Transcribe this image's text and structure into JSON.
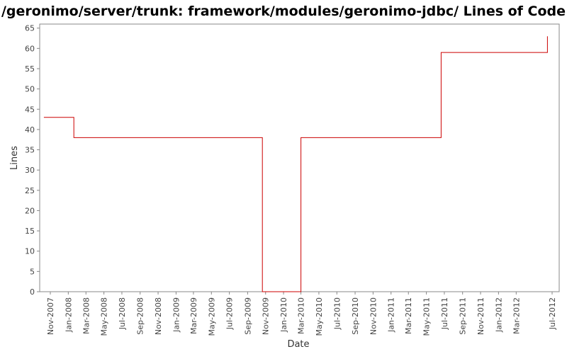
{
  "chart_data": {
    "type": "line",
    "title": "/geronimo/server/trunk: framework/modules/geronimo-jdbc/ Lines of Code",
    "xlabel": "Date",
    "ylabel": "Lines",
    "ylim": [
      0,
      66
    ],
    "y_ticks": [
      0,
      5,
      10,
      15,
      20,
      25,
      30,
      35,
      40,
      45,
      50,
      55,
      60,
      65
    ],
    "x_ticks": [
      "Nov-2007",
      "Jan-2008",
      "Mar-2008",
      "May-2008",
      "Jul-2008",
      "Sep-2008",
      "Nov-2008",
      "Jan-2009",
      "Mar-2009",
      "May-2009",
      "Jul-2009",
      "Sep-2009",
      "Nov-2009",
      "Jan-2010",
      "Mar-2010",
      "May-2010",
      "Jul-2010",
      "Sep-2010",
      "Nov-2010",
      "Jan-2011",
      "Mar-2011",
      "May-2011",
      "Jul-2011",
      "Sep-2011",
      "Nov-2011",
      "Jan-2012",
      "Mar-2012",
      "Jul-2012"
    ],
    "line_style": "step",
    "grid": false,
    "colors": {
      "series": "#cc0000",
      "frame": "#888888"
    },
    "series": [
      {
        "x": [
          "2007-10-10",
          "2008-01-20",
          "2009-10-20",
          "2009-10-21",
          "2010-03-01",
          "2011-06-20",
          "2012-06-15"
        ],
        "y": [
          43,
          38,
          38,
          0,
          38,
          59,
          63
        ]
      }
    ]
  }
}
